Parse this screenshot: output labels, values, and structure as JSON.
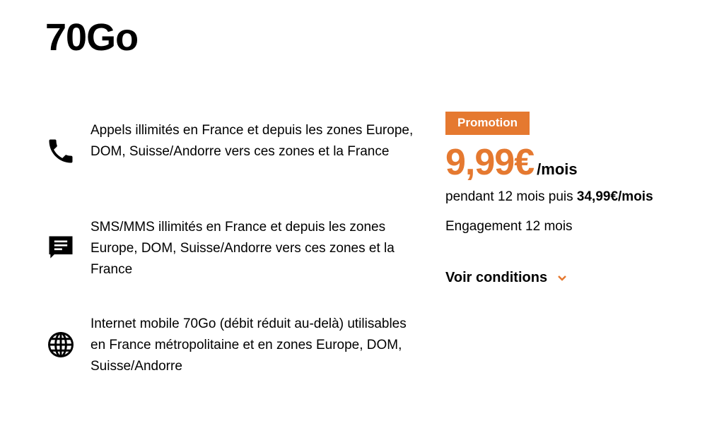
{
  "title": "70Go",
  "features": [
    {
      "icon": "phone-icon",
      "text": "Appels illimités en France et depuis les zones Europe, DOM, Suisse/Andorre vers ces zones et la France"
    },
    {
      "icon": "message-icon",
      "text": "SMS/MMS illimités en France et depuis les zones Europe, DOM, Suisse/Andorre vers ces zones et la France"
    },
    {
      "icon": "globe-icon",
      "text": "Internet mobile 70Go (débit réduit au-delà)  utilisables en France métropolitaine et en zones Europe, DOM, Suisse/Andorre"
    }
  ],
  "offer": {
    "badge": "Promotion",
    "price": "9,99€",
    "per": "/mois",
    "duration": "pendant 12 mois puis ",
    "after_price": "34,99€/mois",
    "engagement": "Engagement 12 mois",
    "conditions": "Voir conditions"
  },
  "colors": {
    "accent": "#e57930"
  }
}
